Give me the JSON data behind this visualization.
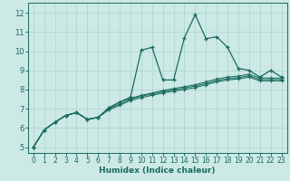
{
  "xlabel": "Humidex (Indice chaleur)",
  "xlim": [
    -0.5,
    23.5
  ],
  "ylim": [
    4.7,
    12.5
  ],
  "background_color": "#cce9e5",
  "grid_color": "#b0d8d2",
  "line_color": "#1a6b5f",
  "xtick_labels": [
    "0",
    "1",
    "2",
    "3",
    "4",
    "5",
    "6",
    "7",
    "8",
    "9",
    "10",
    "11",
    "12",
    "13",
    "14",
    "15",
    "16",
    "17",
    "18",
    "19",
    "20",
    "21",
    "22",
    "23"
  ],
  "xticks": [
    0,
    1,
    2,
    3,
    4,
    5,
    6,
    7,
    8,
    9,
    10,
    11,
    12,
    13,
    14,
    15,
    16,
    17,
    18,
    19,
    20,
    21,
    22,
    23
  ],
  "yticks": [
    5,
    6,
    7,
    8,
    9,
    10,
    11,
    12
  ],
  "line1_x": [
    0,
    1,
    2,
    3,
    4,
    5,
    6,
    7,
    8,
    9,
    10,
    11,
    12,
    13,
    14,
    15,
    16,
    17,
    18,
    19,
    20,
    21,
    22,
    23
  ],
  "line1_y": [
    5.0,
    5.9,
    6.3,
    6.65,
    6.8,
    6.45,
    6.55,
    7.05,
    7.35,
    7.6,
    10.05,
    10.2,
    8.5,
    8.5,
    10.7,
    11.9,
    10.65,
    10.75,
    10.2,
    9.1,
    9.0,
    8.65,
    9.0,
    8.65
  ],
  "line2_x": [
    0,
    1,
    2,
    3,
    4,
    5,
    6,
    7,
    8,
    9,
    10,
    11,
    12,
    13,
    14,
    15,
    16,
    17,
    18,
    19,
    20,
    21,
    22,
    23
  ],
  "line2_y": [
    5.0,
    5.9,
    6.3,
    6.65,
    6.8,
    6.45,
    6.55,
    7.05,
    7.35,
    7.55,
    7.7,
    7.82,
    7.95,
    8.05,
    8.15,
    8.25,
    8.4,
    8.55,
    8.65,
    8.7,
    8.8,
    8.6,
    8.6,
    8.6
  ],
  "line3_x": [
    0,
    1,
    2,
    3,
    4,
    5,
    6,
    7,
    8,
    9,
    10,
    11,
    12,
    13,
    14,
    15,
    16,
    17,
    18,
    19,
    20,
    21,
    22,
    23
  ],
  "line3_y": [
    5.0,
    5.9,
    6.3,
    6.65,
    6.8,
    6.45,
    6.55,
    7.0,
    7.25,
    7.5,
    7.65,
    7.77,
    7.88,
    7.98,
    8.08,
    8.18,
    8.32,
    8.47,
    8.57,
    8.62,
    8.72,
    8.52,
    8.52,
    8.52
  ],
  "line4_x": [
    0,
    1,
    2,
    3,
    4,
    5,
    6,
    7,
    8,
    9,
    10,
    11,
    12,
    13,
    14,
    15,
    16,
    17,
    18,
    19,
    20,
    21,
    22,
    23
  ],
  "line4_y": [
    5.0,
    5.9,
    6.3,
    6.65,
    6.8,
    6.45,
    6.55,
    6.95,
    7.18,
    7.43,
    7.58,
    7.7,
    7.82,
    7.92,
    8.0,
    8.1,
    8.25,
    8.4,
    8.5,
    8.55,
    8.65,
    8.45,
    8.45,
    8.45
  ]
}
